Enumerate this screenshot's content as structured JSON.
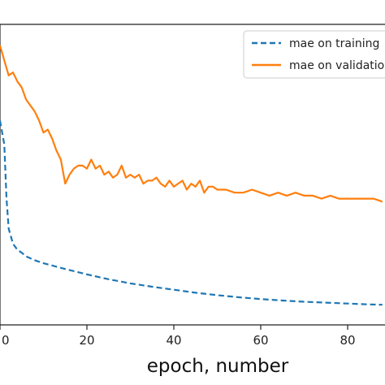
{
  "chart_data": {
    "type": "line",
    "title": "",
    "xlabel": "epoch, number",
    "ylabel": "",
    "xlim": [
      0,
      88
    ],
    "ylim": [
      0,
      1
    ],
    "x_ticks": [
      "0",
      "20",
      "40",
      "60",
      "80"
    ],
    "grid": false,
    "legend_position": "top-right",
    "series": [
      {
        "name": "mae on training",
        "color": "#1f77b4",
        "style": "dashed",
        "x": [
          0,
          1,
          1.5,
          2,
          3,
          4,
          5,
          6,
          8,
          10,
          15,
          20,
          25,
          30,
          35,
          40,
          45,
          50,
          55,
          60,
          65,
          70,
          75,
          80,
          85,
          88
        ],
        "y": [
          0.68,
          0.6,
          0.42,
          0.32,
          0.27,
          0.25,
          0.24,
          0.228,
          0.215,
          0.205,
          0.186,
          0.168,
          0.152,
          0.138,
          0.127,
          0.117,
          0.107,
          0.099,
          0.092,
          0.086,
          0.081,
          0.077,
          0.074,
          0.071,
          0.068,
          0.067
        ]
      },
      {
        "name": "mae on validation",
        "color": "#ff7f0e",
        "style": "solid",
        "x": [
          0,
          1,
          2,
          3,
          4,
          5,
          6,
          7,
          8,
          9,
          10,
          11,
          12,
          13,
          14,
          15,
          16,
          17,
          18,
          19,
          20,
          21,
          22,
          23,
          24,
          25,
          26,
          27,
          28,
          29,
          30,
          31,
          32,
          33,
          34,
          35,
          36,
          37,
          38,
          39,
          40,
          41,
          42,
          43,
          44,
          45,
          46,
          47,
          48,
          49,
          50,
          52,
          54,
          56,
          58,
          60,
          62,
          64,
          66,
          68,
          70,
          72,
          74,
          76,
          78,
          80,
          82,
          84,
          86,
          88
        ],
        "y": [
          0.93,
          0.88,
          0.83,
          0.84,
          0.81,
          0.79,
          0.75,
          0.73,
          0.71,
          0.68,
          0.64,
          0.65,
          0.62,
          0.58,
          0.55,
          0.47,
          0.5,
          0.52,
          0.53,
          0.53,
          0.52,
          0.55,
          0.52,
          0.53,
          0.5,
          0.51,
          0.49,
          0.5,
          0.53,
          0.49,
          0.5,
          0.49,
          0.5,
          0.47,
          0.48,
          0.48,
          0.49,
          0.47,
          0.46,
          0.48,
          0.46,
          0.47,
          0.48,
          0.45,
          0.47,
          0.46,
          0.48,
          0.44,
          0.46,
          0.46,
          0.45,
          0.45,
          0.44,
          0.44,
          0.45,
          0.44,
          0.43,
          0.44,
          0.43,
          0.44,
          0.43,
          0.43,
          0.42,
          0.43,
          0.42,
          0.42,
          0.42,
          0.42,
          0.42,
          0.41
        ]
      }
    ]
  }
}
